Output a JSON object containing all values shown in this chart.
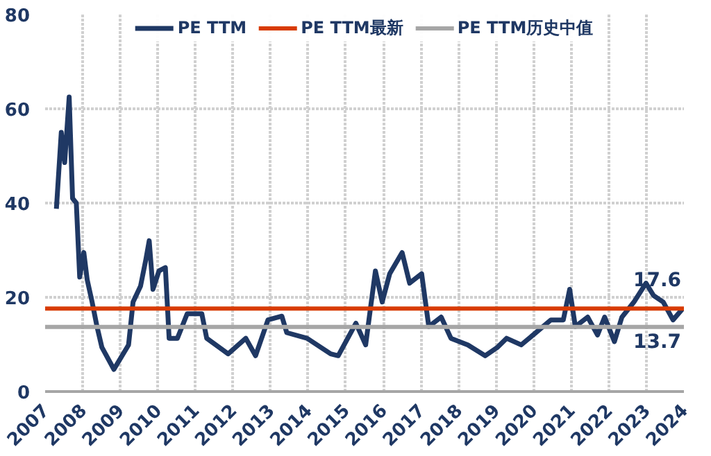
{
  "chart_data": {
    "type": "line",
    "x": [
      2007.3,
      2007.43,
      2007.52,
      2007.64,
      2007.73,
      2007.83,
      2007.92,
      2008.03,
      2008.12,
      2008.25,
      2008.38,
      2008.51,
      2008.83,
      2009.22,
      2009.34,
      2009.54,
      2009.68,
      2009.77,
      2009.87,
      2010.03,
      2010.2,
      2010.3,
      2010.52,
      2010.78,
      2011.17,
      2011.3,
      2011.87,
      2012.34,
      2012.6,
      2012.93,
      2013.3,
      2013.43,
      2013.97,
      2014.6,
      2014.8,
      2015.27,
      2015.53,
      2015.66,
      2015.79,
      2015.97,
      2016.17,
      2016.5,
      2016.7,
      2017.02,
      2017.21,
      2017.54,
      2017.8,
      2018.25,
      2018.71,
      2019.04,
      2019.28,
      2019.67,
      2020.06,
      2020.46,
      2020.79,
      2020.96,
      2021.11,
      2021.44,
      2021.7,
      2021.89,
      2022.15,
      2022.35,
      2022.67,
      2022.99,
      2023.19,
      2023.45,
      2023.71,
      2023.97
    ],
    "series": [
      {
        "name": "PE TTM",
        "color": "#1f3864",
        "values": [
          38.8,
          55,
          48.6,
          62.5,
          41,
          40,
          24.3,
          29.5,
          23.7,
          19,
          13.8,
          9.4,
          4.7,
          9.9,
          19,
          22.4,
          28,
          32,
          21.7,
          25.6,
          26.3,
          11.3,
          11.3,
          16.5,
          16.5,
          11.3,
          8,
          11.3,
          7.6,
          15.2,
          16,
          12.5,
          11.3,
          8,
          7.6,
          14.5,
          9.9,
          17.8,
          25.6,
          19,
          25,
          29.5,
          23,
          25,
          13.8,
          15.8,
          11.3,
          9.9,
          7.6,
          9.4,
          11.3,
          9.9,
          12.5,
          15.2,
          15.2,
          21.7,
          13.8,
          15.8,
          12,
          15.8,
          10.6,
          15.8,
          19,
          23,
          20.4,
          19,
          15.2,
          17.6
        ]
      }
    ],
    "ref_lines": [
      {
        "axis": "y",
        "value": 17.6,
        "label": "PE TTM最新",
        "color": "#d83b01"
      },
      {
        "axis": "y",
        "value": 13.7,
        "label": "PE TTM历史中值",
        "color": "#a6a6a6"
      }
    ],
    "annotations": [
      {
        "text": "17.6",
        "x": 2024,
        "y": 17.6
      },
      {
        "text": "13.7",
        "x": 2024,
        "y": 13.7
      }
    ],
    "xlim": [
      2007,
      2024
    ],
    "xticks": [
      2007,
      2008,
      2009,
      2010,
      2011,
      2012,
      2013,
      2014,
      2015,
      2016,
      2017,
      2018,
      2019,
      2020,
      2021,
      2022,
      2023,
      2024
    ],
    "ylim": [
      0,
      80
    ],
    "yticks": [
      0,
      20,
      40,
      60,
      80
    ],
    "grid": true,
    "legend": "top",
    "line_style": "solid",
    "marker": "none"
  }
}
